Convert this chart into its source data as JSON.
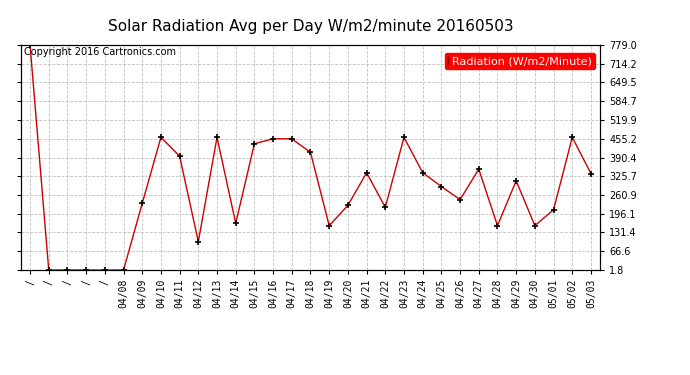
{
  "title": "Solar Radiation Avg per Day W/m2/minute 20160503",
  "copyright": "Copyright 2016 Cartronics.com",
  "legend_label": "Radiation (W/m2/Minute)",
  "background_color": "#ffffff",
  "plot_bg_color": "#ffffff",
  "grid_color": "#bbbbbb",
  "line_color": "#cc0000",
  "marker_color": "#000000",
  "ylim": [
    1.8,
    779.0
  ],
  "yticks": [
    1.8,
    66.6,
    131.4,
    196.1,
    260.9,
    325.7,
    390.4,
    455.2,
    519.9,
    584.7,
    649.5,
    714.2,
    779.0
  ],
  "dates": [
    "/",
    "/",
    "/",
    "/",
    "/",
    "04/08",
    "04/09",
    "04/10",
    "04/11",
    "04/12",
    "04/13",
    "04/14",
    "04/15",
    "04/16",
    "04/17",
    "04/18",
    "04/19",
    "04/20",
    "04/21",
    "04/22",
    "04/23",
    "04/24",
    "04/25",
    "04/26",
    "04/27",
    "04/28",
    "04/29",
    "04/30",
    "05/01",
    "05/02",
    "05/03"
  ],
  "values": [
    779.0,
    1.8,
    1.8,
    1.8,
    1.8,
    1.8,
    232.0,
    460.0,
    395.0,
    100.0,
    460.0,
    163.0,
    438.0,
    455.0,
    455.0,
    408.0,
    155.0,
    225.0,
    338.0,
    218.0,
    460.0,
    338.0,
    290.0,
    245.0,
    350.0,
    155.0,
    310.0,
    155.0,
    210.0,
    460.0,
    335.0
  ],
  "title_fontsize": 11,
  "tick_fontsize": 7,
  "legend_fontsize": 8,
  "copyright_fontsize": 7
}
